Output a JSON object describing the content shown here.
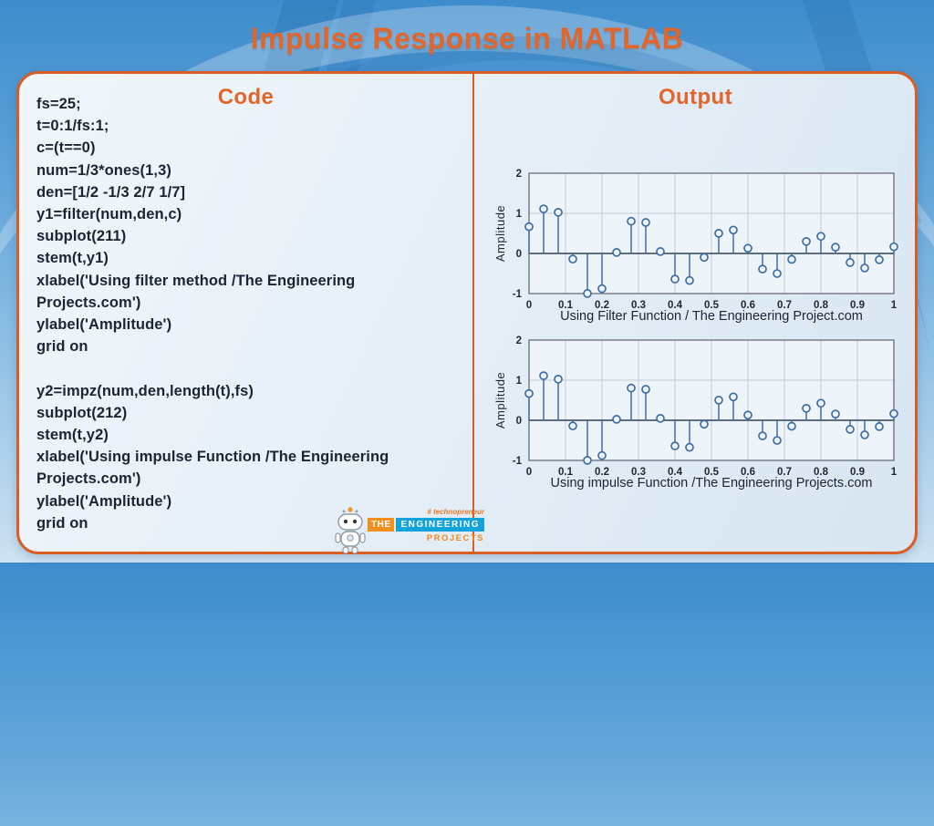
{
  "title": "Impulse Response in MATLAB",
  "panels": {
    "code": {
      "heading": "Code",
      "lines": [
        "fs=25;",
        "t=0:1/fs:1;",
        "c=(t==0)",
        "num=1/3*ones(1,3)",
        "den=[1/2 -1/3 2/7 1/7]",
        "y1=filter(num,den,c)",
        "subplot(211)",
        "stem(t,y1)",
        "xlabel('Using filter method /The Engineering",
        "Projects.com')",
        "ylabel('Amplitude')",
        "grid on",
        "",
        "y2=impz(num,den,length(t),fs)",
        "subplot(212)",
        "stem(t,y2)",
        "xlabel('Using impulse Function /The Engineering",
        "Projects.com')",
        "ylabel('Amplitude')",
        "grid on"
      ]
    },
    "output": {
      "heading": "Output"
    }
  },
  "logo": {
    "tagline": "# technopreneur",
    "the": "THE",
    "engineering": "ENGINEERING",
    "projects": "PROJECTS"
  },
  "colors": {
    "accent_orange": "#E0662B",
    "border_orange": "#D85E26",
    "stem": "#3C6FA9",
    "plot_bg": "#EFF4FB",
    "grid": "#C4CBD4",
    "axis_box": "#5A6372",
    "baseline": "#2E4156",
    "logo_orange": "#F2901E",
    "logo_blue": "#12A3DC"
  },
  "chart_data": [
    {
      "type": "stem",
      "xlabel": "Using Filter Function / The Engineering Project.com",
      "ylabel": "Amplitude",
      "xlim": [
        0,
        1
      ],
      "ylim": [
        -1,
        2
      ],
      "grid": true,
      "x_ticks": [
        0,
        0.1,
        0.2,
        0.3,
        0.4,
        0.5,
        0.6,
        0.7,
        0.8,
        0.9,
        1
      ],
      "y_ticks": [
        2,
        1,
        0,
        -1
      ],
      "x": [
        0,
        0.04,
        0.08,
        0.12,
        0.16,
        0.2,
        0.24,
        0.28,
        0.32,
        0.36,
        0.4,
        0.44,
        0.48,
        0.52,
        0.56,
        0.6,
        0.64,
        0.68,
        0.72,
        0.76,
        0.8,
        0.84,
        0.88,
        0.92,
        0.96,
        1
      ],
      "y": [
        0.667,
        1.111,
        1.026,
        -0.141,
        -0.998,
        -0.878,
        0.025,
        0.804,
        0.772,
        0.048,
        -0.639,
        -0.674,
        -0.098,
        0.502,
        0.584,
        0.13,
        -0.39,
        -0.501,
        -0.148,
        0.299,
        0.427,
        0.156,
        -0.225,
        -0.362,
        -0.157,
        0.166
      ]
    },
    {
      "type": "stem",
      "xlabel": "Using impulse Function /The Engineering Projects.com",
      "ylabel": "Amplitude",
      "xlim": [
        0,
        1
      ],
      "ylim": [
        -1,
        2
      ],
      "grid": true,
      "x_ticks": [
        0,
        0.1,
        0.2,
        0.3,
        0.4,
        0.5,
        0.6,
        0.7,
        0.8,
        0.9,
        1
      ],
      "y_ticks": [
        2,
        1,
        0,
        -1
      ],
      "x": [
        0,
        0.04,
        0.08,
        0.12,
        0.16,
        0.2,
        0.24,
        0.28,
        0.32,
        0.36,
        0.4,
        0.44,
        0.48,
        0.52,
        0.56,
        0.6,
        0.64,
        0.68,
        0.72,
        0.76,
        0.8,
        0.84,
        0.88,
        0.92,
        0.96,
        1
      ],
      "y": [
        0.667,
        1.111,
        1.026,
        -0.141,
        -0.998,
        -0.878,
        0.025,
        0.804,
        0.772,
        0.048,
        -0.639,
        -0.674,
        -0.098,
        0.502,
        0.584,
        0.13,
        -0.39,
        -0.501,
        -0.148,
        0.299,
        0.427,
        0.156,
        -0.225,
        -0.362,
        -0.157,
        0.166
      ]
    }
  ]
}
